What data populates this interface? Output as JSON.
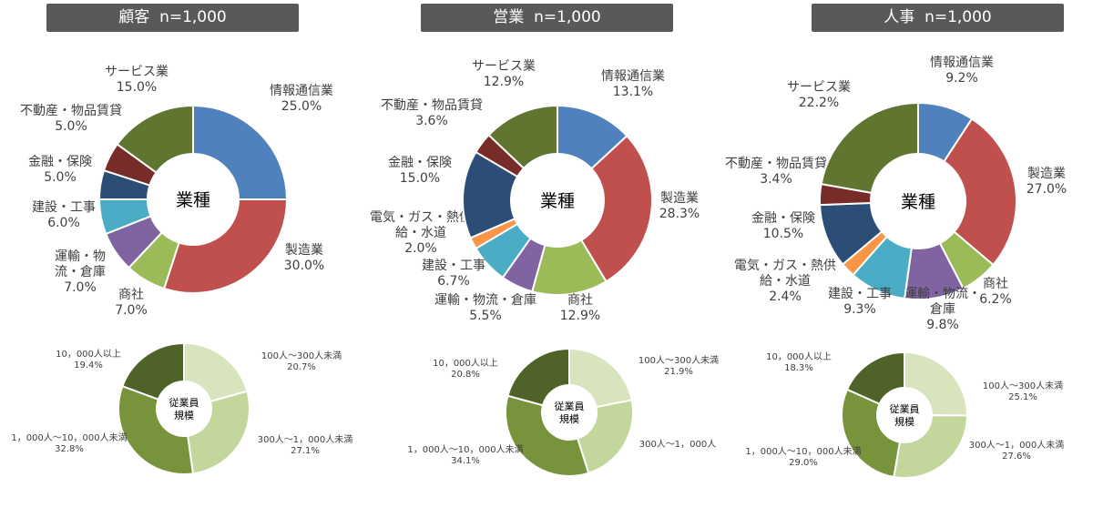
{
  "panels": [
    {
      "title": "顧客",
      "n_label": "n=1,000"
    },
    {
      "title": "営業",
      "n_label": "n=1,000"
    },
    {
      "title": "人事",
      "n_label": "n=1,000"
    }
  ],
  "industry_center_label": "業種",
  "size_center_label": [
    "従業員",
    "規模"
  ],
  "colors": {
    "industry": {
      "情報通信業": "#4f81bd",
      "製造業": "#c0504d",
      "商社": "#9bbb59",
      "運輸・物流・倉庫": "#8064a2",
      "建設・工事": "#4bacc6",
      "電気・ガス・熱供給・水道": "#f79646",
      "金融・保険": "#2c4d75",
      "不動産・物品賃貸": "#772c2a",
      "サービス業": "#5f7530"
    },
    "size": {
      "100人～300人未満": "#d7e4bd",
      "300人～1,000人未満": "#c3d69b",
      "1,000人～10,000人未満": "#77933c",
      "10,000人以上": "#4f6228"
    },
    "header_bg": "#595959"
  },
  "chart_data": [
    {
      "type": "pie",
      "title": "業種",
      "panel": "顧客",
      "slices": [
        {
          "name": "情報通信業",
          "value": 25.0,
          "label_lines": [
            "情報通信業",
            "25.0%"
          ]
        },
        {
          "name": "製造業",
          "value": 30.0,
          "label_lines": [
            "製造業",
            "30.0%"
          ]
        },
        {
          "name": "商社",
          "value": 7.0,
          "label_lines": [
            "商社",
            "7.0%"
          ]
        },
        {
          "name": "運輸・物流・倉庫",
          "value": 7.0,
          "label_lines": [
            "運輸・物",
            "流・倉庫",
            "7.0%"
          ]
        },
        {
          "name": "建設・工事",
          "value": 6.0,
          "label_lines": [
            "建設・工事",
            "6.0%"
          ]
        },
        {
          "name": "金融・保険",
          "value": 5.0,
          "label_lines": [
            "金融・保険",
            "5.0%"
          ]
        },
        {
          "name": "不動産・物品賃貸",
          "value": 5.0,
          "label_lines": [
            "不動産・物品賃貸",
            "5.0%"
          ]
        },
        {
          "name": "サービス業",
          "value": 15.0,
          "label_lines": [
            "サービス業",
            "15.0%"
          ]
        }
      ]
    },
    {
      "type": "pie",
      "title": "業種",
      "panel": "営業",
      "slices": [
        {
          "name": "情報通信業",
          "value": 13.1,
          "label_lines": [
            "情報通信業",
            "13.1%"
          ]
        },
        {
          "name": "製造業",
          "value": 28.3,
          "label_lines": [
            "製造業",
            "28.3%"
          ]
        },
        {
          "name": "商社",
          "value": 12.9,
          "label_lines": [
            "商社",
            "12.9%"
          ]
        },
        {
          "name": "運輸・物流・倉庫",
          "value": 5.5,
          "label_lines": [
            "運輸・物流・倉庫",
            "5.5%"
          ]
        },
        {
          "name": "建設・工事",
          "value": 6.7,
          "label_lines": [
            "建設・工事",
            "6.7%"
          ]
        },
        {
          "name": "電気・ガス・熱供給・水道",
          "value": 2.0,
          "label_lines": [
            "電気・ガス・熱供",
            "給・水道",
            "2.0%"
          ]
        },
        {
          "name": "金融・保険",
          "value": 15.0,
          "label_lines": [
            "金融・保険",
            "15.0%"
          ]
        },
        {
          "name": "不動産・物品賃貸",
          "value": 3.6,
          "label_lines": [
            "不動産・物品賃貸",
            "3.6%"
          ]
        },
        {
          "name": "サービス業",
          "value": 12.9,
          "label_lines": [
            "サービス業",
            "12.9%"
          ]
        }
      ]
    },
    {
      "type": "pie",
      "title": "業種",
      "panel": "人事",
      "slices": [
        {
          "name": "情報通信業",
          "value": 9.2,
          "label_lines": [
            "情報通信業",
            "9.2%"
          ]
        },
        {
          "name": "製造業",
          "value": 27.0,
          "label_lines": [
            "製造業",
            "27.0%"
          ]
        },
        {
          "name": "商社",
          "value": 6.2,
          "label_lines": [
            "商社",
            "6.2%"
          ]
        },
        {
          "name": "運輸・物流・倉庫",
          "value": 9.8,
          "label_lines": [
            "運輸・物流・",
            "倉庫",
            "9.8%"
          ]
        },
        {
          "name": "建設・工事",
          "value": 9.3,
          "label_lines": [
            "建設・工事",
            "9.3%"
          ]
        },
        {
          "name": "電気・ガス・熱供給・水道",
          "value": 2.4,
          "label_lines": [
            "電気・ガス・熱供",
            "給・水道",
            "2.4%"
          ]
        },
        {
          "name": "金融・保険",
          "value": 10.5,
          "label_lines": [
            "金融・保険",
            "10.5%"
          ]
        },
        {
          "name": "不動産・物品賃貸",
          "value": 3.4,
          "label_lines": [
            "不動産・物品賃貸",
            "3.4%"
          ]
        },
        {
          "name": "サービス業",
          "value": 22.2,
          "label_lines": [
            "サービス業",
            "22.2%"
          ]
        }
      ]
    },
    {
      "type": "pie",
      "title": "従業員規模",
      "panel": "顧客",
      "slices": [
        {
          "name": "100人～300人未満",
          "value": 20.7,
          "label_lines": [
            "100人～300人未満",
            "20.7%"
          ]
        },
        {
          "name": "300人～1,000人未満",
          "value": 27.1,
          "label_lines": [
            "300人～1，000人未満",
            "27.1%"
          ]
        },
        {
          "name": "1,000人～10,000人未満",
          "value": 32.8,
          "label_lines": [
            "1，000人～10，000人未満",
            "32.8%"
          ]
        },
        {
          "name": "10,000人以上",
          "value": 19.4,
          "label_lines": [
            "10，000人以上",
            "19.4%"
          ]
        }
      ]
    },
    {
      "type": "pie",
      "title": "従業員規模",
      "panel": "営業",
      "slices": [
        {
          "name": "100人～300人未満",
          "value": 21.9,
          "label_lines": [
            "100人～300人未満",
            "21.9%"
          ]
        },
        {
          "name": "300人～1,000人未満",
          "value": 23.2,
          "label_lines": [
            "300人～1，000人"
          ]
        },
        {
          "name": "1,000人～10,000人未満",
          "value": 34.1,
          "label_lines": [
            "1，000人～10，000人未満",
            "34.1%"
          ]
        },
        {
          "name": "10,000人以上",
          "value": 20.8,
          "label_lines": [
            "10，000人以上",
            "20.8%"
          ]
        }
      ]
    },
    {
      "type": "pie",
      "title": "従業員規模",
      "panel": "人事",
      "slices": [
        {
          "name": "100人～300人未満",
          "value": 25.1,
          "label_lines": [
            "100人～300人未満",
            "25.1%"
          ]
        },
        {
          "name": "300人～1,000人未満",
          "value": 27.6,
          "label_lines": [
            "300人～1，000人未満",
            "27.6%"
          ]
        },
        {
          "name": "1,000人～10,000人未満",
          "value": 29.0,
          "label_lines": [
            "1，000人～10，000人未満",
            "29.0%"
          ]
        },
        {
          "name": "10,000人以上",
          "value": 18.3,
          "label_lines": [
            "10，000人以上",
            "18.3%"
          ]
        }
      ]
    }
  ]
}
